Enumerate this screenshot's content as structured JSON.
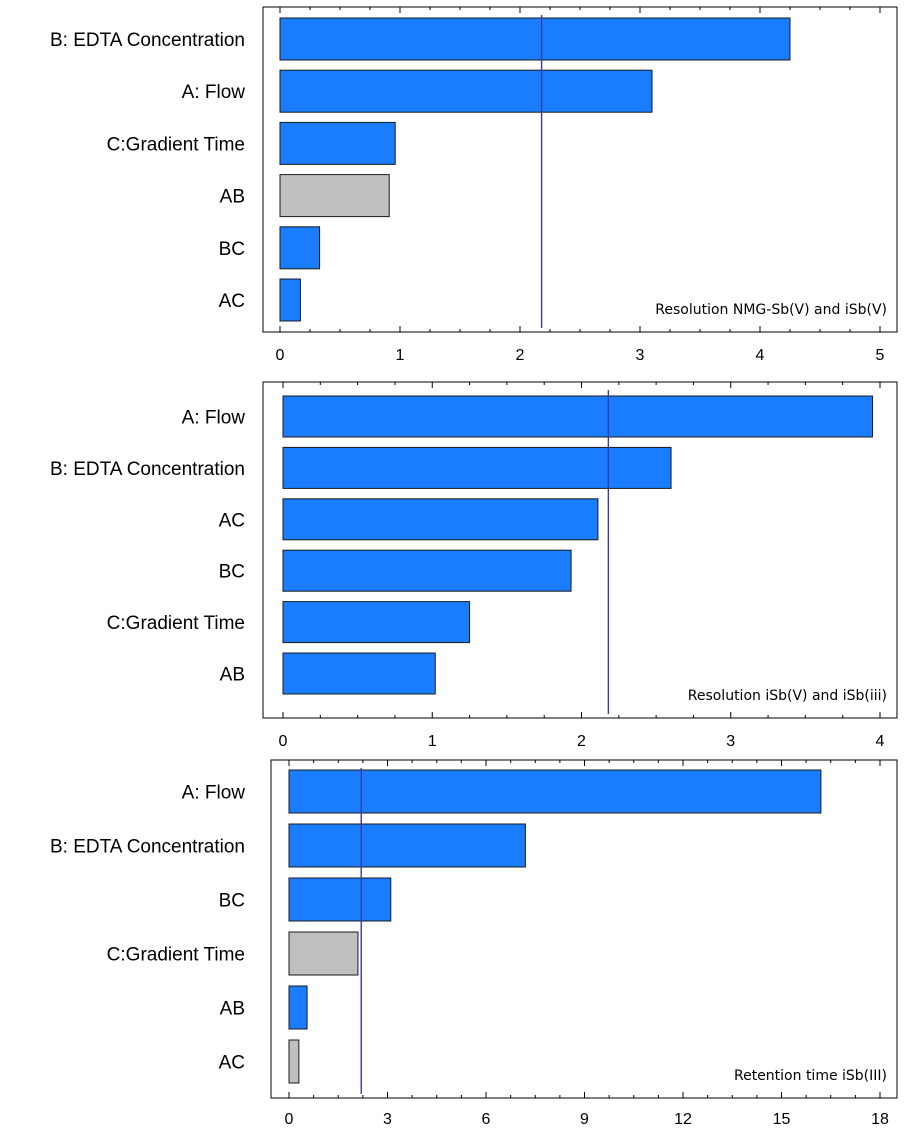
{
  "chart_data": [
    {
      "type": "bar",
      "orientation": "horizontal",
      "categories": [
        "B: EDTA Concentration",
        "A: Flow",
        "C:Gradient Time",
        "AB",
        "BC",
        "AC"
      ],
      "values": [
        4.25,
        3.1,
        0.96,
        0.91,
        0.33,
        0.17
      ],
      "bar_colors": [
        "#1a7cff",
        "#1a7cff",
        "#1a7cff",
        "#c0c0c0",
        "#1a7cff",
        "#1a7cff"
      ],
      "reference_line": 2.18,
      "xlim": [
        0,
        5
      ],
      "xticks": [
        0,
        1,
        2,
        3,
        4,
        5
      ],
      "annotation": "Resolution NMG-Sb(V) and iSb(V)",
      "grid": false
    },
    {
      "type": "bar",
      "orientation": "horizontal",
      "categories": [
        "A: Flow",
        "B: EDTA Concentration",
        "AC",
        "BC",
        "C:Gradient Time",
        "AB"
      ],
      "values": [
        3.95,
        2.6,
        2.11,
        1.93,
        1.25,
        1.02
      ],
      "bar_colors": [
        "#1a7cff",
        "#1a7cff",
        "#1a7cff",
        "#1a7cff",
        "#1a7cff",
        "#1a7cff"
      ],
      "reference_line": 2.18,
      "xlim": [
        0,
        4
      ],
      "xticks": [
        0,
        1,
        2,
        3,
        4
      ],
      "annotation": "Resolution iSb(V) and iSb(iii)",
      "grid": false
    },
    {
      "type": "bar",
      "orientation": "horizontal",
      "categories": [
        "A: Flow",
        "B: EDTA Concentration",
        "BC",
        "C:Gradient Time",
        "AB",
        "AC"
      ],
      "values": [
        16.2,
        7.2,
        3.1,
        2.1,
        0.55,
        0.3
      ],
      "bar_colors": [
        "#1a7cff",
        "#1a7cff",
        "#1a7cff",
        "#c0c0c0",
        "#1a7cff",
        "#c0c0c0"
      ],
      "reference_line": 2.2,
      "xlim": [
        0,
        18
      ],
      "xticks": [
        0,
        3,
        6,
        9,
        12,
        15,
        18
      ],
      "annotation": "Retention time iSb(III)",
      "grid": false
    }
  ]
}
